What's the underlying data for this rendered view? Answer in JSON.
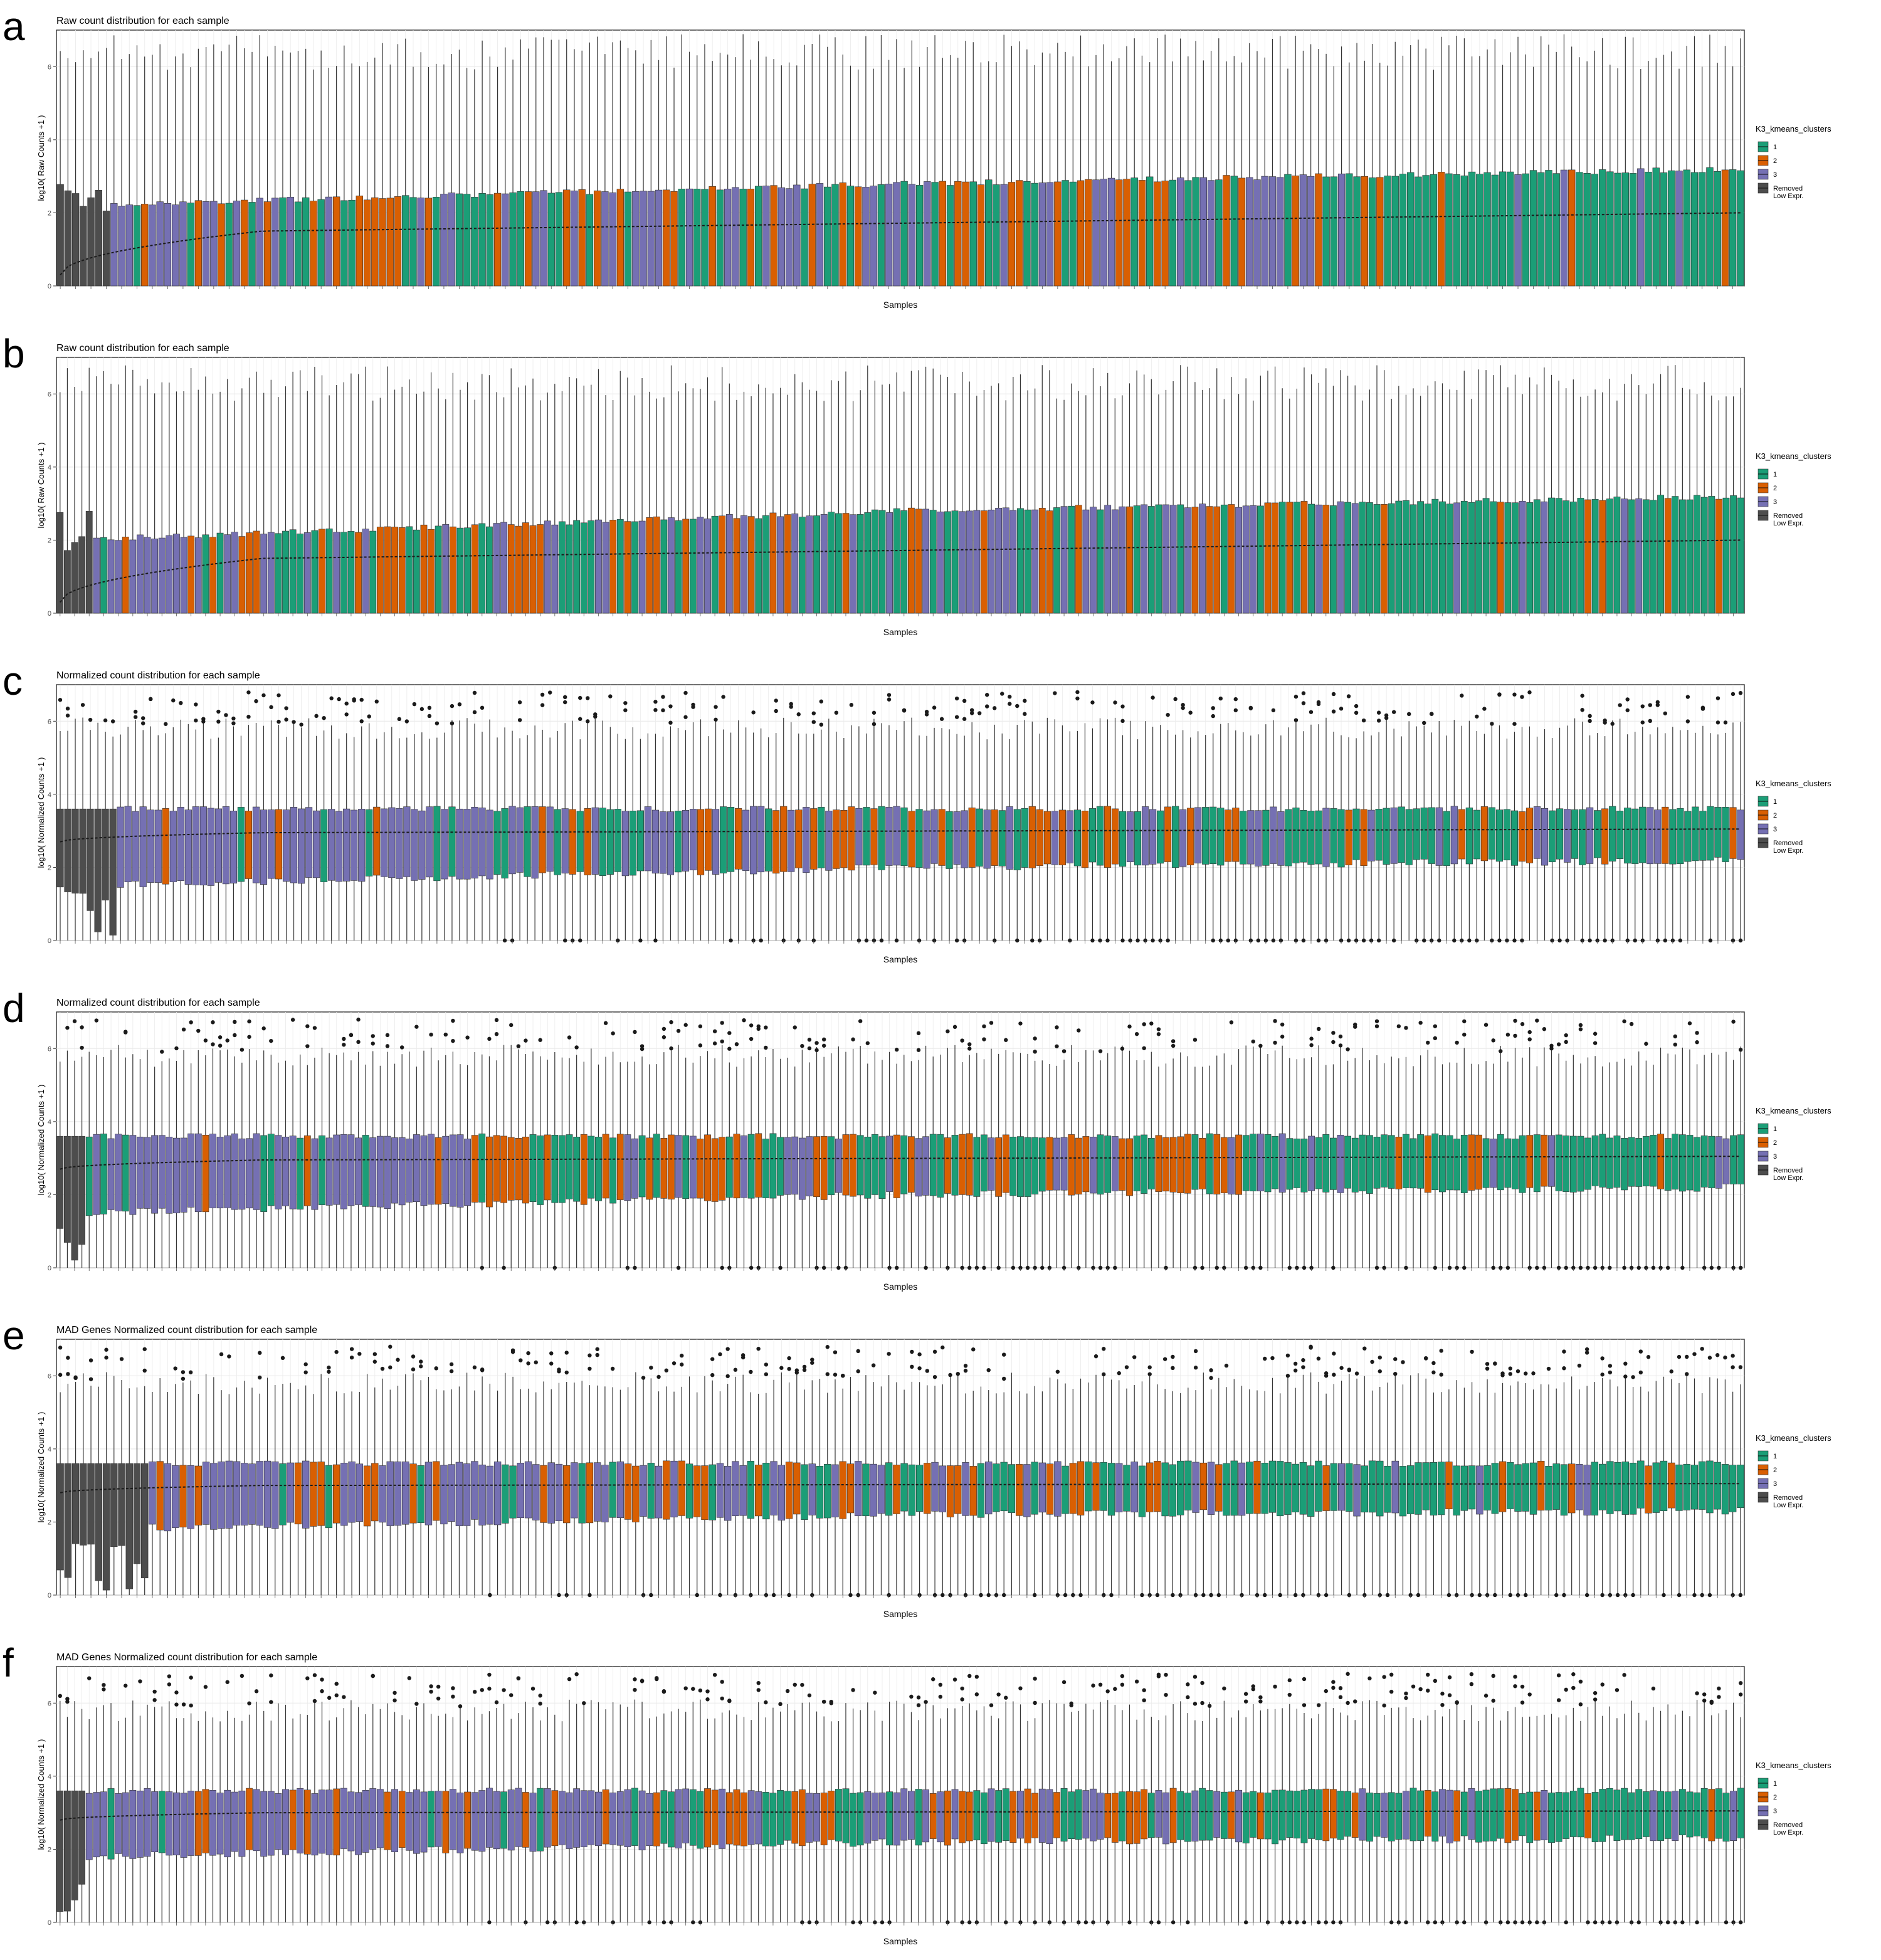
{
  "panels": [
    {
      "letter": "a",
      "chart_data": {
        "type": "boxplot",
        "title": "Raw count distribution for each sample",
        "xlabel": "Samples",
        "ylabel": "log10( Raw Counts +1 )",
        "ylim": [
          0,
          7
        ],
        "yticks": [
          0,
          2,
          4,
          6
        ],
        "n_samples": 220,
        "legend": {
          "title": "K3_kmeans_clusters",
          "position": "right",
          "entries": [
            "1",
            "2",
            "3",
            "Removed\nLow Expr."
          ]
        },
        "median_trend": {
          "start": 0.3,
          "plateau": 1.5,
          "end": 2.0
        },
        "box_lower": 0,
        "box_upper": {
          "start": 2.2,
          "mid": 2.8,
          "end": 3.2
        },
        "whisker_max": {
          "typical": 6.4,
          "range": 0.5
        },
        "n_removed": 7,
        "cluster_bands": [
          [
            0.1,
            "3"
          ],
          [
            0.3,
            "mix"
          ],
          [
            0.55,
            "mix"
          ],
          [
            0.75,
            "mix"
          ],
          [
            1.0,
            "1"
          ]
        ],
        "outliers_high": false,
        "outliers_zero": false
      }
    },
    {
      "letter": "b",
      "chart_data": {
        "type": "boxplot",
        "title": "Raw count distribution for each sample",
        "xlabel": "Samples",
        "ylabel": "log10( Raw Counts +1 )",
        "ylim": [
          0,
          7
        ],
        "yticks": [
          0,
          2,
          4,
          6
        ],
        "n_samples": 232,
        "legend": {
          "title": "K3_kmeans_clusters",
          "position": "right",
          "entries": [
            "1",
            "2",
            "3",
            "Removed\nLow Expr."
          ]
        },
        "median_trend": {
          "start": 0.3,
          "plateau": 1.5,
          "end": 2.0
        },
        "box_lower": 0,
        "box_upper": {
          "start": 2.0,
          "mid": 2.8,
          "end": 3.2
        },
        "whisker_max": {
          "typical": 6.3,
          "range": 0.5
        },
        "n_removed": 5,
        "cluster_bands": [
          [
            0.1,
            "3"
          ],
          [
            0.3,
            "mix"
          ],
          [
            0.55,
            "mix"
          ],
          [
            0.75,
            "mix"
          ],
          [
            1.0,
            "1"
          ]
        ],
        "outliers_high": false,
        "outliers_zero": false
      }
    },
    {
      "letter": "c",
      "chart_data": {
        "type": "boxplot",
        "title": "Normalized count distribution for each sample",
        "xlabel": "Samples",
        "ylabel": "log10( Normalized Counts +1 )",
        "ylim": [
          0,
          7
        ],
        "yticks": [
          0,
          2,
          4,
          6
        ],
        "n_samples": 224,
        "legend": {
          "title": "K3_kmeans_clusters",
          "position": "right",
          "entries": [
            "1",
            "2",
            "3",
            "Removed\nLow Expr."
          ]
        },
        "median_trend": {
          "start": 2.7,
          "plateau": 2.95,
          "end": 3.05
        },
        "box_lower": {
          "start": 1.5,
          "mid": 2.0,
          "end": 2.2
        },
        "box_upper": 3.6,
        "whisker_max": {
          "typical": 5.8,
          "range": 0.3
        },
        "n_removed": 8,
        "cluster_bands": [
          [
            0.3,
            "3"
          ],
          [
            0.5,
            "mix"
          ],
          [
            0.7,
            "mix"
          ],
          [
            1.0,
            "1"
          ]
        ],
        "outliers_high": true,
        "outliers_zero": true
      }
    },
    {
      "letter": "d",
      "chart_data": {
        "type": "boxplot",
        "title": "Normalized count distribution for each sample",
        "xlabel": "Samples",
        "ylabel": "log10( Normalized Counts +1 )",
        "ylim": [
          0,
          7
        ],
        "yticks": [
          0,
          2,
          4,
          6
        ],
        "n_samples": 232,
        "legend": {
          "title": "K3_kmeans_clusters",
          "position": "right",
          "entries": [
            "1",
            "2",
            "3",
            "Removed\nLow Expr."
          ]
        },
        "median_trend": {
          "start": 2.7,
          "plateau": 2.95,
          "end": 3.05
        },
        "box_lower": {
          "start": 1.5,
          "mid": 2.0,
          "end": 2.2
        },
        "box_upper": 3.6,
        "whisker_max": {
          "typical": 5.8,
          "range": 0.3
        },
        "n_removed": 4,
        "cluster_bands": [
          [
            0.25,
            "3"
          ],
          [
            0.5,
            "mix"
          ],
          [
            0.7,
            "mix"
          ],
          [
            1.0,
            "1"
          ]
        ],
        "outliers_high": true,
        "outliers_zero": true
      }
    },
    {
      "letter": "e",
      "chart_data": {
        "type": "boxplot",
        "title": "MAD Genes Normalized count distribution for each sample",
        "xlabel": "Samples",
        "ylabel": "log10( Normalized Counts +1 )",
        "ylim": [
          0,
          7
        ],
        "yticks": [
          0,
          2,
          4,
          6
        ],
        "n_samples": 220,
        "legend": {
          "title": "K3_kmeans_clusters",
          "position": "right",
          "entries": [
            "1",
            "2",
            "3",
            "Removed\nLow Expr."
          ]
        },
        "median_trend": {
          "start": 2.8,
          "plateau": 3.0,
          "end": 3.05
        },
        "box_lower": {
          "start": 1.8,
          "mid": 2.2,
          "end": 2.3
        },
        "box_upper": 3.6,
        "whisker_max": {
          "typical": 5.8,
          "range": 0.3
        },
        "n_removed": 12,
        "cluster_bands": [
          [
            0.25,
            "3"
          ],
          [
            0.45,
            "mix"
          ],
          [
            0.6,
            "mix"
          ],
          [
            0.75,
            "1"
          ],
          [
            1.0,
            "1"
          ]
        ],
        "outliers_high": true,
        "outliers_zero": true
      }
    },
    {
      "letter": "f",
      "chart_data": {
        "type": "boxplot",
        "title": "MAD Genes Normalized count distribution for each sample",
        "xlabel": "Samples",
        "ylabel": "log10( Normalized Counts +1 )",
        "ylim": [
          0,
          7
        ],
        "yticks": [
          0,
          2,
          4,
          6
        ],
        "n_samples": 232,
        "legend": {
          "title": "K3_kmeans_clusters",
          "position": "right",
          "entries": [
            "1",
            "2",
            "3",
            "Removed\nLow Expr."
          ]
        },
        "median_trend": {
          "start": 2.8,
          "plateau": 3.0,
          "end": 3.05
        },
        "box_lower": {
          "start": 1.8,
          "mid": 2.2,
          "end": 2.3
        },
        "box_upper": 3.6,
        "whisker_max": {
          "typical": 5.8,
          "range": 0.3
        },
        "n_removed": 4,
        "cluster_bands": [
          [
            0.35,
            "3"
          ],
          [
            0.55,
            "mix"
          ],
          [
            0.7,
            "mix"
          ],
          [
            1.0,
            "1"
          ]
        ],
        "outliers_high": true,
        "outliers_zero": true
      }
    }
  ],
  "colors": {
    "1": "#1b9e77",
    "2": "#d95f02",
    "3": "#7570b3",
    "removed": "#4d4d4d",
    "whisker": "#333333",
    "median": "#1a1a1a",
    "outlier": "#1a1a1a",
    "grid": "#ebebeb",
    "panel_border": "#333333"
  }
}
